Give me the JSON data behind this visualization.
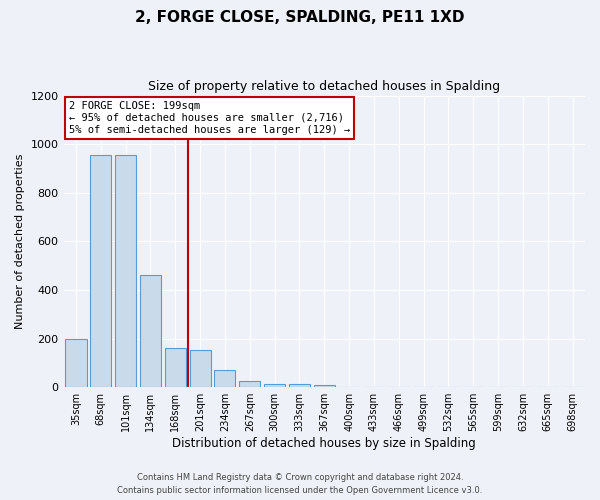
{
  "title": "2, FORGE CLOSE, SPALDING, PE11 1XD",
  "subtitle": "Size of property relative to detached houses in Spalding",
  "xlabel": "Distribution of detached houses by size in Spalding",
  "ylabel": "Number of detached properties",
  "bin_labels": [
    "35sqm",
    "68sqm",
    "101sqm",
    "134sqm",
    "168sqm",
    "201sqm",
    "234sqm",
    "267sqm",
    "300sqm",
    "333sqm",
    "367sqm",
    "400sqm",
    "433sqm",
    "466sqm",
    "499sqm",
    "532sqm",
    "565sqm",
    "599sqm",
    "632sqm",
    "665sqm",
    "698sqm"
  ],
  "bin_values": [
    200,
    955,
    955,
    460,
    160,
    155,
    70,
    25,
    15,
    12,
    10,
    0,
    0,
    0,
    0,
    0,
    0,
    0,
    0,
    0,
    0
  ],
  "bar_color": "#c9daea",
  "bar_edge_color": "#5b9bd5",
  "property_line_color": "#c00000",
  "annotation_text": "2 FORGE CLOSE: 199sqm\n← 95% of detached houses are smaller (2,716)\n5% of semi-detached houses are larger (129) →",
  "annotation_box_color": "#c00000",
  "ylim": [
    0,
    1200
  ],
  "yticks": [
    0,
    200,
    400,
    600,
    800,
    1000,
    1200
  ],
  "footer_line1": "Contains HM Land Registry data © Crown copyright and database right 2024.",
  "footer_line2": "Contains public sector information licensed under the Open Government Licence v3.0.",
  "bg_color": "#eef2f8",
  "plot_bg_color": "#eef2f8"
}
